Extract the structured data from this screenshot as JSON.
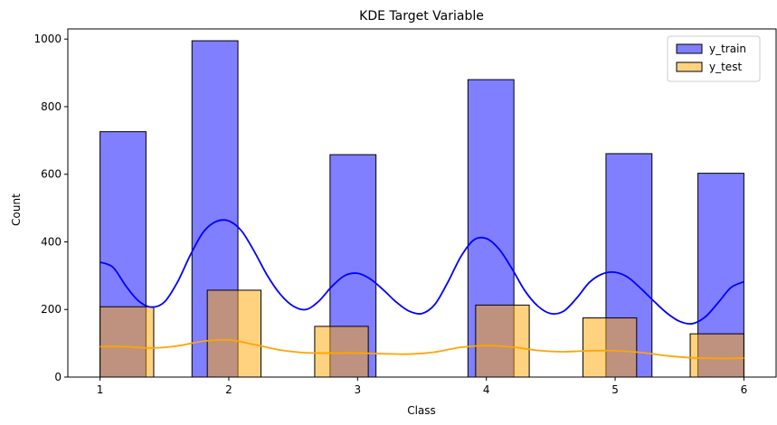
{
  "chart_data": {
    "type": "bar",
    "title": "KDE Target Variable",
    "xlabel": "Class",
    "ylabel": "Count",
    "xlim": [
      0.75,
      6.25
    ],
    "ylim": [
      0,
      1030
    ],
    "x_ticks": [
      1,
      2,
      3,
      4,
      5,
      6
    ],
    "y_ticks": [
      0,
      200,
      400,
      600,
      800,
      1000
    ],
    "legend_position": "top-right",
    "series": [
      {
        "name": "y_train",
        "color": "#0000ff",
        "bins": [
          {
            "x0": 1.0,
            "x1": 1.357,
            "value": 726
          },
          {
            "x0": 1.714,
            "x1": 2.071,
            "value": 995
          },
          {
            "x0": 2.786,
            "x1": 3.143,
            "value": 658
          },
          {
            "x0": 3.857,
            "x1": 4.214,
            "value": 880
          },
          {
            "x0": 4.929,
            "x1": 5.286,
            "value": 661
          },
          {
            "x0": 5.643,
            "x1": 6.0,
            "value": 603
          }
        ],
        "kde": [
          [
            1.0,
            340
          ],
          [
            1.1,
            325
          ],
          [
            1.2,
            270
          ],
          [
            1.3,
            225
          ],
          [
            1.4,
            207
          ],
          [
            1.5,
            222
          ],
          [
            1.6,
            280
          ],
          [
            1.7,
            360
          ],
          [
            1.8,
            428
          ],
          [
            1.9,
            460
          ],
          [
            2.0,
            462
          ],
          [
            2.1,
            432
          ],
          [
            2.2,
            370
          ],
          [
            2.3,
            300
          ],
          [
            2.4,
            245
          ],
          [
            2.5,
            210
          ],
          [
            2.6,
            200
          ],
          [
            2.7,
            225
          ],
          [
            2.8,
            268
          ],
          [
            2.9,
            300
          ],
          [
            3.0,
            307
          ],
          [
            3.1,
            290
          ],
          [
            3.2,
            258
          ],
          [
            3.3,
            222
          ],
          [
            3.4,
            195
          ],
          [
            3.5,
            188
          ],
          [
            3.6,
            215
          ],
          [
            3.7,
            280
          ],
          [
            3.8,
            355
          ],
          [
            3.9,
            405
          ],
          [
            4.0,
            410
          ],
          [
            4.1,
            378
          ],
          [
            4.2,
            320
          ],
          [
            4.3,
            255
          ],
          [
            4.4,
            210
          ],
          [
            4.5,
            188
          ],
          [
            4.6,
            195
          ],
          [
            4.7,
            233
          ],
          [
            4.8,
            280
          ],
          [
            4.9,
            305
          ],
          [
            5.0,
            310
          ],
          [
            5.1,
            295
          ],
          [
            5.2,
            262
          ],
          [
            5.3,
            225
          ],
          [
            5.4,
            190
          ],
          [
            5.5,
            165
          ],
          [
            5.6,
            158
          ],
          [
            5.7,
            178
          ],
          [
            5.8,
            220
          ],
          [
            5.9,
            265
          ],
          [
            6.0,
            282
          ]
        ]
      },
      {
        "name": "y_test",
        "color": "#ffa500",
        "bins": [
          {
            "x0": 1.0,
            "x1": 1.417,
            "value": 208
          },
          {
            "x0": 1.833,
            "x1": 2.25,
            "value": 257
          },
          {
            "x0": 2.667,
            "x1": 3.083,
            "value": 150
          },
          {
            "x0": 3.917,
            "x1": 4.333,
            "value": 213
          },
          {
            "x0": 4.75,
            "x1": 5.167,
            "value": 175
          },
          {
            "x0": 5.583,
            "x1": 6.0,
            "value": 128
          }
        ],
        "kde": [
          [
            1.0,
            90
          ],
          [
            1.2,
            90
          ],
          [
            1.4,
            86
          ],
          [
            1.6,
            92
          ],
          [
            1.8,
            106
          ],
          [
            2.0,
            110
          ],
          [
            2.2,
            96
          ],
          [
            2.4,
            80
          ],
          [
            2.6,
            72
          ],
          [
            2.8,
            71
          ],
          [
            3.0,
            71
          ],
          [
            3.2,
            69
          ],
          [
            3.4,
            68
          ],
          [
            3.6,
            74
          ],
          [
            3.8,
            88
          ],
          [
            4.0,
            93
          ],
          [
            4.2,
            89
          ],
          [
            4.4,
            79
          ],
          [
            4.6,
            75
          ],
          [
            4.8,
            78
          ],
          [
            5.0,
            78
          ],
          [
            5.2,
            73
          ],
          [
            5.4,
            63
          ],
          [
            5.6,
            57
          ],
          [
            5.8,
            55
          ],
          [
            6.0,
            56
          ]
        ]
      }
    ]
  }
}
